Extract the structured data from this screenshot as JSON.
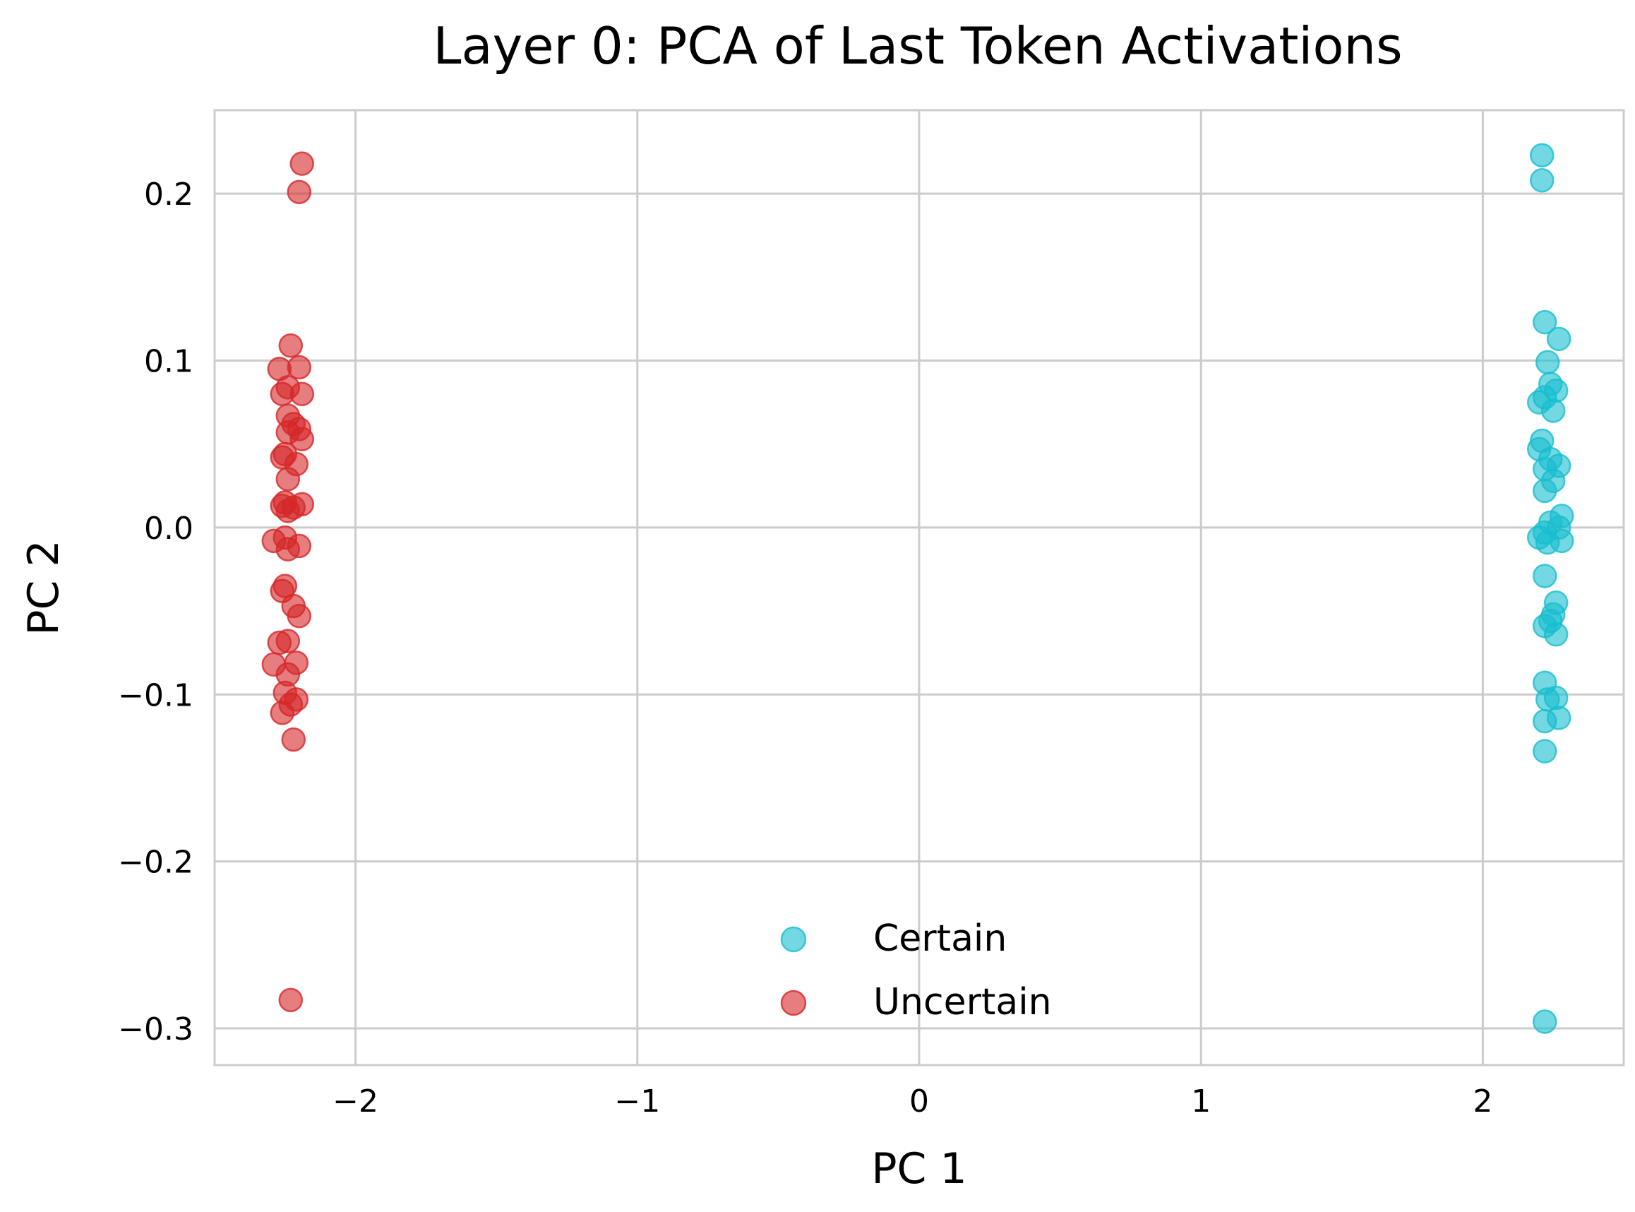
{
  "chart_data": {
    "type": "scatter",
    "title": "Layer 0: PCA of Last Token Activations",
    "xlabel": "PC 1",
    "ylabel": "PC 2",
    "xlim": [
      -2.5,
      2.5
    ],
    "ylim": [
      -0.322,
      0.25
    ],
    "x_ticks": [
      -2,
      -1,
      0,
      1,
      2
    ],
    "x_tick_labels": [
      "−2",
      "−1",
      "0",
      "1",
      "2"
    ],
    "y_ticks": [
      0.2,
      0.1,
      0.0,
      -0.1,
      -0.2,
      -0.3
    ],
    "y_tick_labels": [
      "0.2",
      "0.1",
      "0.0",
      "−0.1",
      "−0.2",
      "−0.3"
    ],
    "grid": true,
    "legend_position": "lower center",
    "series": [
      {
        "name": "Certain",
        "color": "#17becf",
        "points": [
          [
            2.21,
            0.223
          ],
          [
            2.21,
            0.208
          ],
          [
            2.22,
            0.123
          ],
          [
            2.27,
            0.113
          ],
          [
            2.23,
            0.099
          ],
          [
            2.24,
            0.086
          ],
          [
            2.26,
            0.082
          ],
          [
            2.22,
            0.078
          ],
          [
            2.2,
            0.075
          ],
          [
            2.25,
            0.07
          ],
          [
            2.21,
            0.052
          ],
          [
            2.2,
            0.047
          ],
          [
            2.24,
            0.041
          ],
          [
            2.27,
            0.037
          ],
          [
            2.22,
            0.035
          ],
          [
            2.25,
            0.028
          ],
          [
            2.22,
            0.022
          ],
          [
            2.28,
            0.007
          ],
          [
            2.24,
            0.003
          ],
          [
            2.27,
            0.0
          ],
          [
            2.22,
            -0.003
          ],
          [
            2.2,
            -0.006
          ],
          [
            2.23,
            -0.009
          ],
          [
            2.28,
            -0.008
          ],
          [
            2.22,
            -0.029
          ],
          [
            2.26,
            -0.045
          ],
          [
            2.25,
            -0.052
          ],
          [
            2.24,
            -0.056
          ],
          [
            2.22,
            -0.059
          ],
          [
            2.26,
            -0.064
          ],
          [
            2.22,
            -0.093
          ],
          [
            2.23,
            -0.103
          ],
          [
            2.26,
            -0.102
          ],
          [
            2.27,
            -0.114
          ],
          [
            2.22,
            -0.116
          ],
          [
            2.22,
            -0.134
          ],
          [
            2.22,
            -0.296
          ]
        ]
      },
      {
        "name": "Uncertain",
        "color": "#d62728",
        "points": [
          [
            -2.19,
            0.218
          ],
          [
            -2.2,
            0.201
          ],
          [
            -2.23,
            0.109
          ],
          [
            -2.27,
            0.095
          ],
          [
            -2.2,
            0.096
          ],
          [
            -2.24,
            0.084
          ],
          [
            -2.26,
            0.08
          ],
          [
            -2.19,
            0.08
          ],
          [
            -2.24,
            0.067
          ],
          [
            -2.22,
            0.062
          ],
          [
            -2.2,
            0.059
          ],
          [
            -2.24,
            0.057
          ],
          [
            -2.19,
            0.053
          ],
          [
            -2.25,
            0.044
          ],
          [
            -2.26,
            0.042
          ],
          [
            -2.21,
            0.038
          ],
          [
            -2.24,
            0.029
          ],
          [
            -2.25,
            0.015
          ],
          [
            -2.26,
            0.013
          ],
          [
            -2.19,
            0.014
          ],
          [
            -2.22,
            0.012
          ],
          [
            -2.24,
            0.01
          ],
          [
            -2.29,
            -0.008
          ],
          [
            -2.25,
            -0.006
          ],
          [
            -2.2,
            -0.011
          ],
          [
            -2.24,
            -0.013
          ],
          [
            -2.25,
            -0.035
          ],
          [
            -2.26,
            -0.038
          ],
          [
            -2.22,
            -0.047
          ],
          [
            -2.2,
            -0.053
          ],
          [
            -2.27,
            -0.069
          ],
          [
            -2.24,
            -0.068
          ],
          [
            -2.29,
            -0.082
          ],
          [
            -2.21,
            -0.081
          ],
          [
            -2.24,
            -0.088
          ],
          [
            -2.25,
            -0.099
          ],
          [
            -2.21,
            -0.103
          ],
          [
            -2.23,
            -0.106
          ],
          [
            -2.26,
            -0.111
          ],
          [
            -2.22,
            -0.127
          ],
          [
            -2.23,
            -0.283
          ]
        ]
      }
    ]
  }
}
